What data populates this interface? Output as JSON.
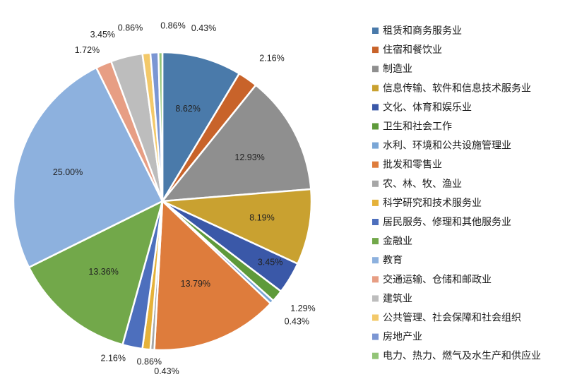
{
  "chart_data": {
    "type": "pie",
    "title": "",
    "legend_position": "right",
    "categories": [
      "租赁和商务服务业",
      "住宿和餐饮业",
      "制造业",
      "信息传输、软件和信息技术服务业",
      "文化、体育和娱乐业",
      "卫生和社会工作",
      "水利、环境和公共设施管理业",
      "批发和零售业",
      "农、林、牧、渔业",
      "科学研究和技术服务业",
      "居民服务、修理和其他服务业",
      "金融业",
      "教育",
      "交通运输、仓储和邮政业",
      "建筑业",
      "公共管理、社会保障和社会组织",
      "房地产业",
      "电力、热力、燃气及水生产和供应业"
    ],
    "values": [
      8.62,
      2.16,
      12.93,
      8.19,
      3.45,
      1.29,
      0.43,
      13.79,
      0.43,
      0.86,
      2.16,
      13.36,
      25.0,
      1.72,
      3.45,
      0.86,
      0.86,
      0.43
    ],
    "labels": [
      "8.62%",
      "2.16%",
      "12.93%",
      "8.19%",
      "3.45%",
      "1.29%",
      "0.43%",
      "13.79%",
      "0.43%",
      "0.86%",
      "2.16%",
      "13.36%",
      "25.00%",
      "1.72%",
      "3.45%",
      "0.86%",
      "0.86%",
      "0.43%"
    ],
    "colors": [
      "#4a7aaa",
      "#c8632a",
      "#8f8f8f",
      "#c9a130",
      "#3a58a8",
      "#5e9a3a",
      "#7aa6d6",
      "#de7c3c",
      "#a6a6a6",
      "#e5b23a",
      "#4d6fbd",
      "#72a84a",
      "#8db1de",
      "#e79e84",
      "#bdbdbd",
      "#f3c96a",
      "#7b96d3",
      "#92c477"
    ]
  }
}
